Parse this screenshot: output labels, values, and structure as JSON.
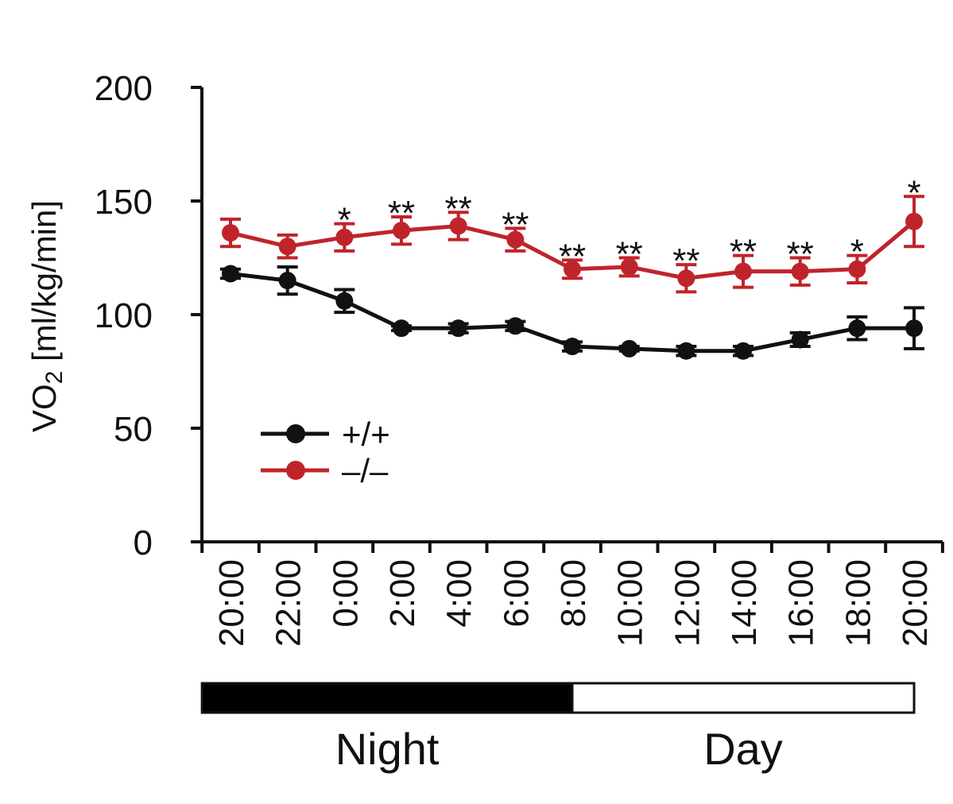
{
  "chart_data": {
    "type": "line",
    "ylabel_main": "VO",
    "ylabel_sub": "2",
    "ylabel_rest": " [ml/kg/min]",
    "ylim": [
      0,
      200
    ],
    "yticks": [
      "0",
      "50",
      "100",
      "150",
      "200"
    ],
    "categories": [
      "20:00",
      "22:00",
      "0:00",
      "2:00",
      "4:00",
      "6:00",
      "8:00",
      "10:00",
      "12:00",
      "14:00",
      "16:00",
      "18:00",
      "20:00"
    ],
    "series": [
      {
        "name": "+/+",
        "color": "#111111",
        "values": [
          118,
          115,
          106,
          94,
          94,
          95,
          86,
          85,
          84,
          84,
          89,
          94,
          94
        ],
        "errors": [
          2,
          6,
          5,
          1,
          2,
          2,
          2,
          1,
          2,
          2,
          3,
          5,
          9
        ]
      },
      {
        "name": "–/–",
        "color": "#c0242b",
        "values": [
          136,
          130,
          134,
          137,
          139,
          133,
          120,
          121,
          116,
          119,
          119,
          120,
          141
        ],
        "errors": [
          6,
          5,
          6,
          6,
          6,
          5,
          4,
          4,
          6,
          7,
          6,
          6,
          11
        ]
      }
    ],
    "significance": [
      "",
      "",
      "*",
      "**",
      "**",
      "**",
      "**",
      "**",
      "**",
      "**",
      "**",
      "*",
      "*"
    ],
    "phases": [
      {
        "label": "Night",
        "fill": "#000000",
        "from": 0,
        "to": 6.5
      },
      {
        "label": "Day",
        "fill": "#ffffff",
        "from": 6.5,
        "to": 12.5
      }
    ]
  }
}
